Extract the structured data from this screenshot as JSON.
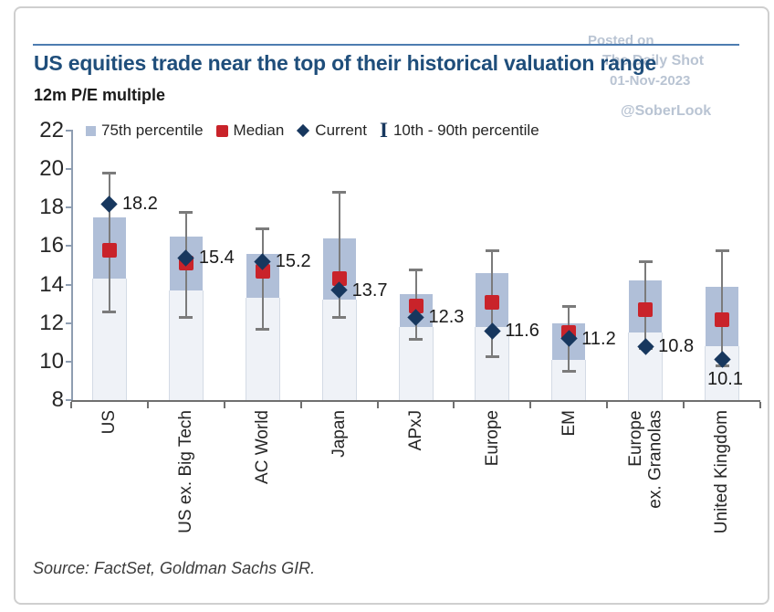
{
  "page": {
    "title": "US equities trade near the top of their historical valuation range",
    "subtitle": "12m P/E multiple",
    "source_note": "Source: FactSet, Goldman Sachs GIR."
  },
  "watermark": {
    "posted_on": "Posted on",
    "site": "The Daily Shot",
    "date": "01-Nov-2023",
    "handle": "@SoberLook"
  },
  "legend": {
    "items": [
      {
        "icon": "box-swatch",
        "label": "75th percentile"
      },
      {
        "icon": "median-swatch",
        "label": "Median"
      },
      {
        "icon": "diamond-swatch",
        "label": "Current"
      },
      {
        "icon": "ibeam-swatch",
        "label": "10th - 90th percentile"
      }
    ]
  },
  "colors": {
    "title-blue": "#1f4e7b",
    "rule-blue": "#4d7cb0",
    "box-fill": "#b0bfd8",
    "median-red": "#c9232a",
    "current-navy": "#17375e",
    "whisker-gray": "#7b7b7b",
    "axis-gray": "#6f6f6f",
    "yaxis-blue-gray": "#8e9db1",
    "watermark-gray": "#b9c4d3",
    "text-dark": "#262626"
  },
  "chart_data": {
    "type": "box-range",
    "title": "US equities trade near the top of their historical valuation range",
    "ylabel": "12m P/E multiple",
    "xlabel": "",
    "ylim": [
      8,
      22
    ],
    "yticks": [
      8,
      10,
      12,
      14,
      16,
      18,
      20,
      22
    ],
    "grid": false,
    "legend_position": "top",
    "categories": [
      "US",
      "US ex. Big Tech",
      "AC World",
      "Japan",
      "APxJ",
      "Europe",
      "EM",
      "Europe\nex. Granolas",
      "United Kingdom"
    ],
    "series": [
      {
        "key": "p10",
        "name": "10th percentile",
        "values": [
          12.6,
          12.3,
          11.7,
          12.3,
          11.2,
          10.3,
          9.5,
          10.7,
          9.8
        ]
      },
      {
        "key": "p25",
        "name": "25th percentile",
        "values": [
          14.3,
          13.7,
          13.3,
          13.2,
          11.8,
          11.8,
          10.1,
          11.5,
          10.8
        ]
      },
      {
        "key": "median",
        "name": "Median",
        "values": [
          15.8,
          15.1,
          14.7,
          14.3,
          12.9,
          13.1,
          11.5,
          12.7,
          12.2
        ]
      },
      {
        "key": "p75",
        "name": "75th percentile",
        "values": [
          17.5,
          16.5,
          15.6,
          16.4,
          13.5,
          14.6,
          12.0,
          14.2,
          13.9
        ]
      },
      {
        "key": "p90",
        "name": "90th percentile",
        "values": [
          19.8,
          17.8,
          16.9,
          18.8,
          14.8,
          15.8,
          12.9,
          15.2,
          15.8
        ]
      },
      {
        "key": "current",
        "name": "Current",
        "values": [
          18.2,
          15.4,
          15.2,
          13.7,
          12.3,
          11.6,
          11.2,
          10.8,
          10.1
        ]
      }
    ],
    "point_labels": [
      "18.2",
      "15.4",
      "15.2",
      "13.7",
      "12.3",
      "11.6",
      "11.2",
      "10.8",
      "10.1"
    ],
    "label_positions": [
      "right",
      "right",
      "right",
      "right",
      "right",
      "right",
      "right",
      "right",
      "below"
    ]
  }
}
